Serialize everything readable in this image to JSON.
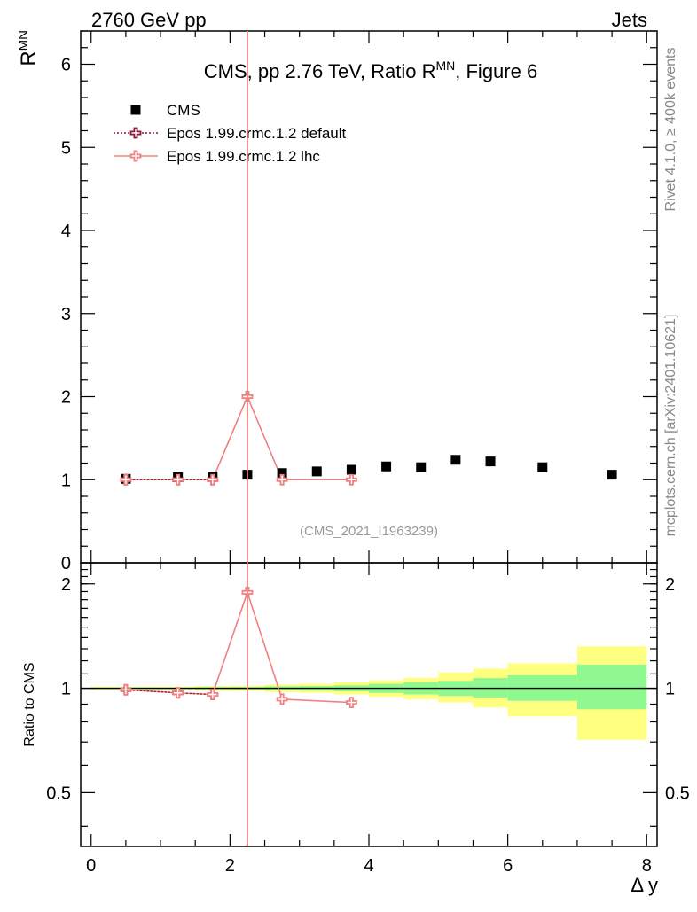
{
  "header": {
    "left": "2760 GeV pp",
    "right": "Jets"
  },
  "side_labels": {
    "rivet": "Rivet 4.1.0, ≥ 400k events",
    "mcplots": "mcplots.cern.ch [arXiv:2401.10621]"
  },
  "chart_data": [
    {
      "type": "scatter",
      "panel": "main",
      "title_main": "CMS, pp 2.76 TeV, Ratio R",
      "title_sup": "MN",
      "title_tail": ", Figure 6",
      "ylabel": "R",
      "ylabel_sup": "MN",
      "watermark": "(CMS_2021_I1963239)",
      "xlim": [
        -0.15,
        8.15
      ],
      "ylim": [
        0,
        6.4
      ],
      "yticks": [
        0,
        1,
        2,
        3,
        4,
        5,
        6
      ],
      "legend": [
        {
          "name": "CMS",
          "style": "square",
          "color": "#000000"
        },
        {
          "name": "Epos 1.99.crmc.1.2 default",
          "style": "dotted-cross",
          "color": "#8b1a3a"
        },
        {
          "name": "Epos 1.99.crmc.1.2 lhc",
          "style": "solid-cross",
          "color": "#f08080"
        }
      ],
      "series": [
        {
          "name": "CMS",
          "x": [
            0.5,
            1.25,
            1.75,
            2.25,
            2.75,
            3.25,
            3.75,
            4.25,
            4.75,
            5.25,
            5.75,
            6.5,
            7.5
          ],
          "y": [
            1.01,
            1.03,
            1.04,
            1.06,
            1.08,
            1.1,
            1.12,
            1.16,
            1.15,
            1.24,
            1.22,
            1.15,
            1.06
          ]
        },
        {
          "name": "Epos 1.99.crmc.1.2 default",
          "x": [
            0.5,
            1.25,
            1.75
          ],
          "y": [
            1.0,
            1.0,
            1.0
          ]
        },
        {
          "name": "Epos 1.99.crmc.1.2 lhc",
          "x": [
            0.5,
            1.25,
            1.75,
            2.25,
            2.75,
            3.75
          ],
          "y": [
            1.0,
            1.0,
            1.0,
            2.0,
            1.0,
            1.0
          ],
          "vertical_error_at_x": 2.25
        }
      ]
    },
    {
      "type": "line",
      "panel": "ratio",
      "ylabel": "Ratio to CMS",
      "xlabel": "Δ y",
      "xlim": [
        -0.15,
        8.15
      ],
      "ylim": [
        0.35,
        2.3
      ],
      "log_scale": true,
      "yticks": [
        0.5,
        1,
        2
      ],
      "ytick_labels": [
        "0.5",
        "1",
        "2"
      ],
      "xticks": [
        0,
        2,
        4,
        6,
        8
      ],
      "xtick_labels": [
        "0",
        "2",
        "4",
        "6",
        "8"
      ],
      "uncertainty_bands": [
        {
          "x0": 0.0,
          "x1": 1.0,
          "green": [
            0.995,
            1.005
          ],
          "yellow": [
            0.99,
            1.01
          ]
        },
        {
          "x0": 1.0,
          "x1": 1.5,
          "green": [
            0.995,
            1.005
          ],
          "yellow": [
            0.99,
            1.01
          ]
        },
        {
          "x0": 1.5,
          "x1": 2.0,
          "green": [
            0.993,
            1.007
          ],
          "yellow": [
            0.985,
            1.015
          ]
        },
        {
          "x0": 2.0,
          "x1": 2.5,
          "green": [
            0.992,
            1.008
          ],
          "yellow": [
            0.983,
            1.017
          ]
        },
        {
          "x0": 2.5,
          "x1": 3.0,
          "green": [
            0.988,
            1.012
          ],
          "yellow": [
            0.975,
            1.025
          ]
        },
        {
          "x0": 3.0,
          "x1": 3.5,
          "green": [
            0.985,
            1.015
          ],
          "yellow": [
            0.97,
            1.03
          ]
        },
        {
          "x0": 3.5,
          "x1": 4.0,
          "green": [
            0.98,
            1.02
          ],
          "yellow": [
            0.96,
            1.04
          ]
        },
        {
          "x0": 4.0,
          "x1": 4.5,
          "green": [
            0.97,
            1.03
          ],
          "yellow": [
            0.945,
            1.055
          ]
        },
        {
          "x0": 4.5,
          "x1": 5.0,
          "green": [
            0.96,
            1.04
          ],
          "yellow": [
            0.93,
            1.07
          ]
        },
        {
          "x0": 5.0,
          "x1": 5.5,
          "green": [
            0.95,
            1.05
          ],
          "yellow": [
            0.91,
            1.11
          ]
        },
        {
          "x0": 5.5,
          "x1": 6.0,
          "green": [
            0.94,
            1.07
          ],
          "yellow": [
            0.88,
            1.14
          ]
        },
        {
          "x0": 6.0,
          "x1": 7.0,
          "green": [
            0.92,
            1.09
          ],
          "yellow": [
            0.83,
            1.18
          ]
        },
        {
          "x0": 7.0,
          "x1": 8.0,
          "green": [
            0.87,
            1.17
          ],
          "yellow": [
            0.71,
            1.32
          ]
        }
      ],
      "series": [
        {
          "name": "Epos 1.99.crmc.1.2 default",
          "x": [
            0.5,
            1.25,
            1.75
          ],
          "y": [
            0.99,
            0.97,
            0.96
          ]
        },
        {
          "name": "Epos 1.99.crmc.1.2 lhc",
          "x": [
            0.5,
            1.25,
            1.75,
            2.25,
            2.75,
            3.75
          ],
          "y": [
            0.99,
            0.97,
            0.96,
            1.89,
            0.93,
            0.91
          ]
        }
      ]
    }
  ]
}
